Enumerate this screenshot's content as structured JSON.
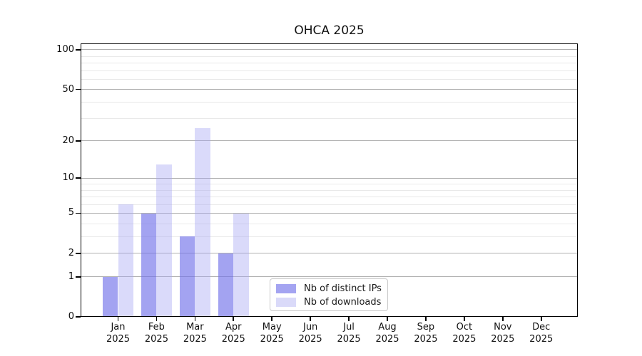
{
  "title": "OHCA 2025",
  "chart_data": {
    "type": "bar",
    "title": "OHCA 2025",
    "x_categories": [
      "Jan",
      "Feb",
      "Mar",
      "Apr",
      "May",
      "Jun",
      "Jul",
      "Aug",
      "Sep",
      "Oct",
      "Nov",
      "Dec"
    ],
    "x_year_label": "2025",
    "series": [
      {
        "name": "Nb of distinct IPs",
        "values": [
          1,
          5,
          3,
          2,
          0,
          0,
          0,
          0,
          0,
          0,
          0,
          0
        ],
        "bar_color": "rgba(113,113,234,0.65)",
        "legend_color": "#a4a4f1"
      },
      {
        "name": "Nb of downloads",
        "values": [
          6,
          13,
          25,
          5,
          0,
          0,
          0,
          0,
          0,
          0,
          0,
          0
        ],
        "bar_color": "rgba(164,164,243,0.41)",
        "legend_color": "#dadaf9"
      }
    ],
    "y_scale": "log10(value+1)",
    "y_major_ticks": [
      0,
      1,
      2,
      5,
      10,
      20,
      50,
      100
    ],
    "y_minor_ticks": [
      3,
      4,
      6,
      7,
      8,
      9,
      30,
      40,
      60,
      70,
      80,
      90
    ],
    "ylim": [
      0,
      112
    ],
    "grid": "both",
    "legend_position": "inside-bottom-center"
  },
  "colors": {
    "background": "#ffffff",
    "axis": "#000000",
    "major_grid": "#b0b0b0",
    "minor_grid": "#e9e9e9",
    "text": "#111111"
  }
}
